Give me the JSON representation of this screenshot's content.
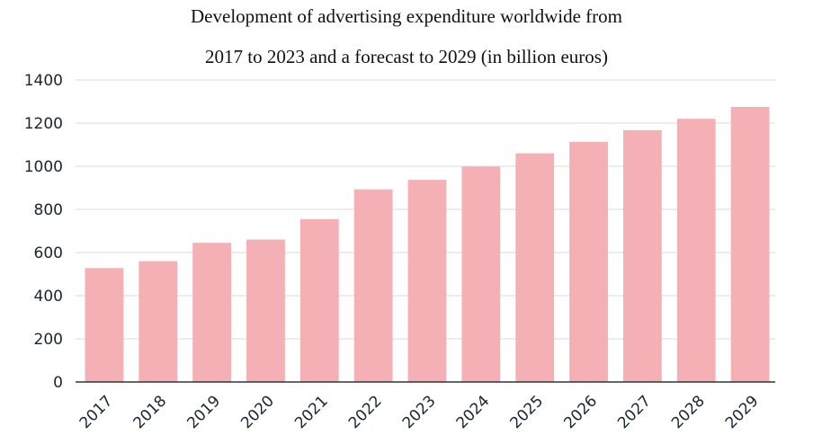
{
  "chart_data": {
    "type": "bar",
    "title": "Development of advertising expenditure worldwide from",
    "subtitle": "2017 to 2023 and a forecast to 2029 (in billion euros)",
    "xlabel": "",
    "ylabel": "",
    "categories": [
      "2017",
      "2018",
      "2019",
      "2020",
      "2021",
      "2022",
      "2023",
      "2024",
      "2025",
      "2026",
      "2027",
      "2028",
      "2029"
    ],
    "values": [
      528,
      560,
      645,
      660,
      755,
      893,
      937,
      998,
      1060,
      1113,
      1167,
      1220,
      1275
    ],
    "ylim": [
      0,
      1400
    ],
    "yticks": [
      "0",
      "200",
      "400",
      "600",
      "800",
      "1000",
      "1200",
      "1400"
    ],
    "grid": true,
    "legend": "none",
    "bar_color": "#f4b0b4",
    "grid_color": "#d9d9d9",
    "axis_color": "#333333"
  }
}
